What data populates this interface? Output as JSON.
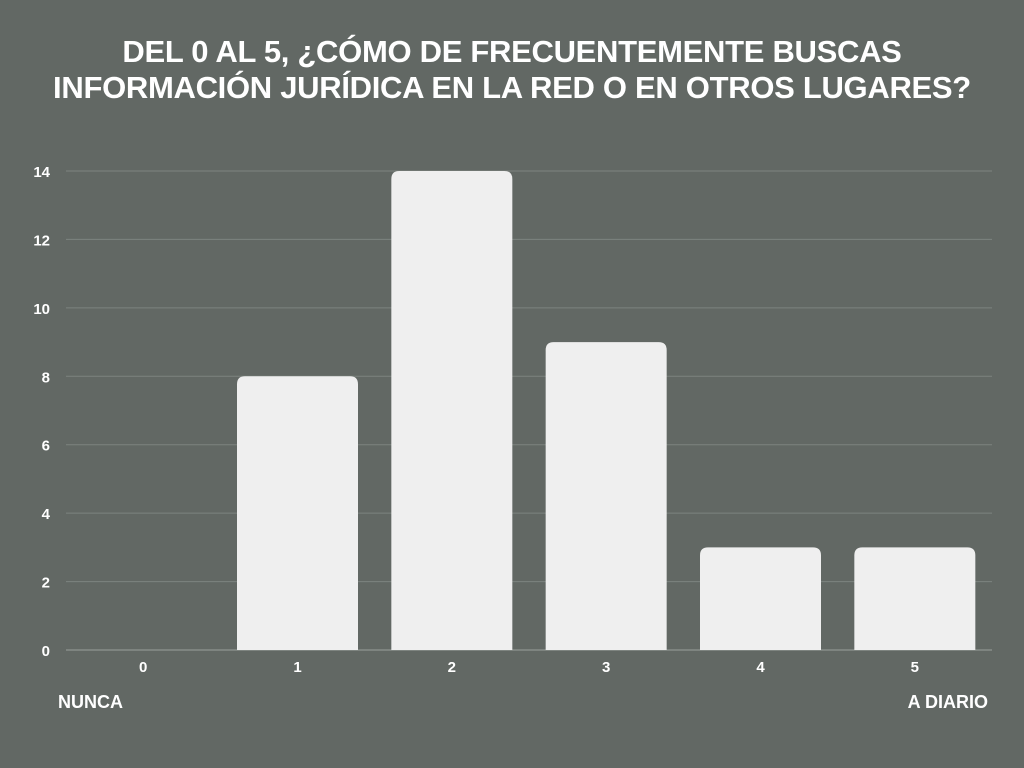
{
  "title_lines": [
    "DEL 0 AL 5, ¿CÓMO DE FRECUENTEMENTE BUSCAS",
    "INFORMACIÓN JURÍDICA EN LA RED O EN OTROS LUGARES?"
  ],
  "chart_data": {
    "type": "bar",
    "title": "DEL 0 AL 5, ¿CÓMO DE FRECUENTEMENTE BUSCAS INFORMACIÓN JURÍDICA EN LA RED O EN OTROS LUGARES?",
    "categories": [
      "0",
      "1",
      "2",
      "3",
      "4",
      "5"
    ],
    "values": [
      0,
      8,
      14,
      9,
      3,
      3
    ],
    "ylim": [
      0,
      14
    ],
    "yticks": [
      0,
      2,
      4,
      6,
      8,
      10,
      12,
      14
    ],
    "grid": true,
    "xlabel": "",
    "ylabel": "",
    "scale_end_labels": {
      "left": "NUNCA",
      "right": "A DIARIO"
    },
    "colors": {
      "background": "#626864",
      "bar": "#efefef",
      "grid": "#7d837f",
      "text": "#ffffff"
    }
  }
}
